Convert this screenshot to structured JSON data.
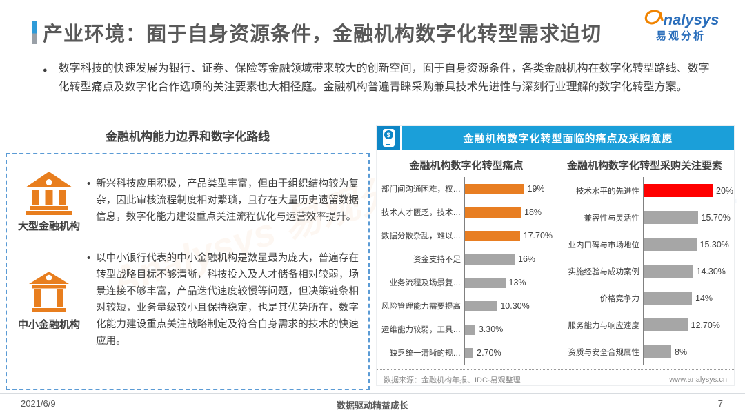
{
  "header": {
    "title": "产业环境：囿于自身资源条件，金融机构数字化转型需求迫切"
  },
  "logo": {
    "text": "nalysys",
    "subtext": "易观分析"
  },
  "intro": "数字科技的快速发展为银行、证券、保险等金融领域带来较大的创新空间，囿于自身资源条件，各类金融机构在数字化转型路线、数字化转型痛点及数字化合作选项的关注要素也大相径庭。金融机构普遍青睐采购兼具技术先进性与深刻行业理解的数字化转型方案。",
  "glyphs": {
    "list_dot": "●",
    "bullet": "•",
    "dollar": "$"
  },
  "left_panel": {
    "heading": "金融机构能力边界和数字化路线",
    "rows": [
      {
        "icon": "bank-building-icon",
        "label": "大型金融机构",
        "text": "新兴科技应用积极，产品类型丰富，但由于组织结构较为复杂，因此审核流程制度相对繁琐，且存在大量历史遗留数据信息，数字化能力建设重点关注流程优化与运营效率提升。"
      },
      {
        "icon": "bank-building-outline-icon",
        "label": "中小金融机构",
        "text": "以中小银行代表的中小金融机构是数量最为庞大，普遍存在转型战略目标不够清晰，科技投入及人才储备相对较弱，场景连接不够丰富，产品迭代速度较慢等问题，但决策链条相对较短，业务量级较小且保持稳定，也是其优势所在，数字化能力建设重点关注战略制定及符合自身需求的技术的快速应用。"
      }
    ]
  },
  "right_panel": {
    "banner": "金融机构数字化转型面临的痛点及采购意愿",
    "source": "数据来源：金融机构年报、IDC·易观整理",
    "website": "www.analysys.cn"
  },
  "chart_data": [
    {
      "type": "bar",
      "orientation": "horizontal",
      "title": "金融机构数字化转型痛点",
      "categories": [
        "部门间沟通困难，权…",
        "技术人才匮乏，技术…",
        "数据分散杂乱，难以…",
        "资金支持不足",
        "业务流程及场景复…",
        "风险管理能力需要提高",
        "运维能力较弱，工具…",
        "缺乏统一清晰的规…"
      ],
      "values": [
        19,
        18,
        17.7,
        16,
        13,
        10.3,
        3.3,
        2.7
      ],
      "value_labels": [
        "19%",
        "18%",
        "17.70%",
        "16%",
        "13%",
        "10.30%",
        "3.30%",
        "2.70%"
      ],
      "bar_colors": [
        "#E87E22",
        "#E87E22",
        "#E87E22",
        "#A6A6A6",
        "#A6A6A6",
        "#A6A6A6",
        "#A6A6A6",
        "#A6A6A6"
      ],
      "xlim": [
        0,
        20
      ],
      "grid": false,
      "legend": false
    },
    {
      "type": "bar",
      "orientation": "horizontal",
      "title": "金融机构数字化转型采购关注要素",
      "categories": [
        "技术水平的先进性",
        "兼容性与灵活性",
        "业内口碑与市场地位",
        "实施经验与成功案例",
        "价格竞争力",
        "服务能力与响应速度",
        "资质与安全合规属性"
      ],
      "values": [
        20,
        15.7,
        15.3,
        14.3,
        14,
        12.7,
        8
      ],
      "value_labels": [
        "20%",
        "15.70%",
        "15.30%",
        "14.30%",
        "14%",
        "12.70%",
        "8%"
      ],
      "bar_colors": [
        "#FF0000",
        "#A6A6A6",
        "#A6A6A6",
        "#A6A6A6",
        "#A6A6A6",
        "#A6A6A6",
        "#A6A6A6"
      ],
      "xlim": [
        0,
        20
      ],
      "grid": false,
      "legend": false
    }
  ],
  "footer": {
    "date": "2021/6/9",
    "slogan": "数据驱动精益成长",
    "page_number": "7"
  },
  "watermark": "Analysys 易观分析",
  "colors": {
    "banner_blue": "#1B9FD9",
    "banner_icon_blue": "#0E86C6",
    "highlight_orange": "#E87E22",
    "highlight_red": "#FF0000",
    "bar_gray": "#A6A6A6",
    "dashed_border_blue": "#5B9BD5",
    "logo_blue": "#2A6EBB",
    "logo_orange": "#F08300",
    "title_gray": "#595959"
  }
}
